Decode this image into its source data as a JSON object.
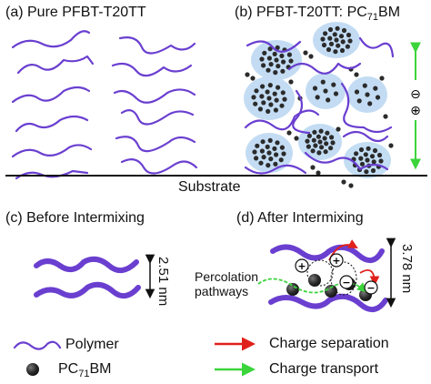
{
  "panels": {
    "a": {
      "title": "(a) Pure PFBT-T20TT"
    },
    "b": {
      "title_main": "(b) PFBT-T20TT: PC",
      "title_sub": "71",
      "title_end": "BM",
      "minus_sign": "⊖",
      "plus_sign": "⊕"
    },
    "c": {
      "title": "(c) Before Intermixing",
      "spacing": "2.51 nm"
    },
    "d": {
      "title": "(d) After Intermixing",
      "spacing": "3.78 nm",
      "pathway_line1": "Percolation",
      "pathway_line2": "pathways",
      "plus_sign": "+",
      "minus_sign": "−"
    }
  },
  "substrate_label": "Substrate",
  "legend": {
    "polymer": "Polymer",
    "pcbm_main": "PC",
    "pcbm_sub": "71",
    "pcbm_end": "BM",
    "charge_separation": "Charge separation",
    "charge_transport": "Charge transport"
  },
  "colors": {
    "polymer": "#6a3fd0",
    "polymer_dark": "#4a2aa8",
    "pcbm": "#2b2b2b",
    "halo": "#b9d7f1",
    "separation_arrow": "#e0201b",
    "transport_arrow": "#3bd43b",
    "text": "#111111"
  }
}
